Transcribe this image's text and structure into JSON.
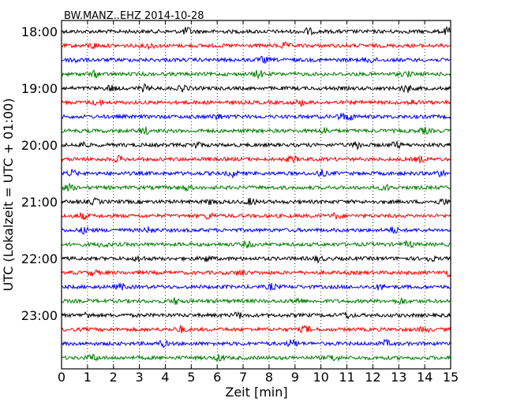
{
  "chart_data": {
    "type": "line",
    "chart_kind": "seismogram dayplot (helicorder)",
    "title": "BW.MANZ..EHZ 2014-10-28",
    "xlabel": "Zeit  [min]",
    "ylabel": "UTC (Lokalzeit = UTC + 01:00)",
    "xlim": [
      0,
      15
    ],
    "x_ticks": [
      "0",
      "1",
      "2",
      "3",
      "4",
      "5",
      "6",
      "7",
      "8",
      "9",
      "10",
      "11",
      "12",
      "13",
      "14",
      "15"
    ],
    "y_tick_labels": [
      "18:00",
      "19:00",
      "20:00",
      "21:00",
      "22:00",
      "23:00"
    ],
    "trace_interval_min": 15,
    "trace_count": 24,
    "trace_colors": [
      "#000000",
      "#ff0000",
      "#0000ff",
      "#007f00"
    ],
    "grid": "vertical dotted lines at each minute",
    "traces": [
      {
        "start": "18:00",
        "color": "#000000",
        "bursts": [
          {
            "x": 4.85,
            "amp": 1.8
          },
          {
            "x": 9.5,
            "amp": 1.4
          },
          {
            "x": 14.9,
            "amp": 1.6
          }
        ]
      },
      {
        "start": "18:15",
        "color": "#ff0000",
        "bursts": [
          {
            "x": 1.2,
            "amp": 1.3
          },
          {
            "x": 3.4,
            "amp": 1.2
          },
          {
            "x": 8.6,
            "amp": 1.2
          }
        ]
      },
      {
        "start": "18:30",
        "color": "#0000ff",
        "bursts": [
          {
            "x": 0.5,
            "amp": 1.3
          },
          {
            "x": 7.8,
            "amp": 1.3
          },
          {
            "x": 11.9,
            "amp": 1.2
          }
        ]
      },
      {
        "start": "18:45",
        "color": "#007f00",
        "bursts": [
          {
            "x": 1.3,
            "amp": 1.2
          },
          {
            "x": 7.6,
            "amp": 1.7
          },
          {
            "x": 13.3,
            "amp": 1.2
          }
        ]
      },
      {
        "start": "19:00",
        "color": "#000000",
        "bursts": [
          {
            "x": 1.9,
            "amp": 1.3
          },
          {
            "x": 3.2,
            "amp": 1.4
          },
          {
            "x": 4.7,
            "amp": 1.4
          },
          {
            "x": 13.3,
            "amp": 1.8
          }
        ]
      },
      {
        "start": "19:15",
        "color": "#ff0000",
        "bursts": [
          {
            "x": 1.4,
            "amp": 1.2
          },
          {
            "x": 9.2,
            "amp": 1.2
          },
          {
            "x": 13.6,
            "amp": 1.2
          }
        ]
      },
      {
        "start": "19:30",
        "color": "#0000ff",
        "bursts": [
          {
            "x": 6.0,
            "amp": 1.2
          },
          {
            "x": 10.8,
            "amp": 1.3
          },
          {
            "x": 11.1,
            "amp": 1.3
          }
        ]
      },
      {
        "start": "19:45",
        "color": "#007f00",
        "bursts": [
          {
            "x": 3.2,
            "amp": 1.6
          },
          {
            "x": 10.1,
            "amp": 1.4
          },
          {
            "x": 14.0,
            "amp": 1.3
          }
        ]
      },
      {
        "start": "20:00",
        "color": "#000000",
        "bursts": [
          {
            "x": 0.8,
            "amp": 1.3
          },
          {
            "x": 5.2,
            "amp": 1.3
          },
          {
            "x": 11.4,
            "amp": 1.6
          },
          {
            "x": 12.9,
            "amp": 1.3
          }
        ]
      },
      {
        "start": "20:15",
        "color": "#ff0000",
        "bursts": [
          {
            "x": 2.2,
            "amp": 1.2
          },
          {
            "x": 8.9,
            "amp": 1.3
          },
          {
            "x": 13.8,
            "amp": 1.2
          }
        ]
      },
      {
        "start": "20:30",
        "color": "#0000ff",
        "bursts": [
          {
            "x": 0.4,
            "amp": 1.4
          },
          {
            "x": 6.6,
            "amp": 1.4
          },
          {
            "x": 10.0,
            "amp": 1.5
          },
          {
            "x": 14.6,
            "amp": 1.3
          }
        ]
      },
      {
        "start": "20:45",
        "color": "#007f00",
        "bursts": [
          {
            "x": 0.3,
            "amp": 1.2
          },
          {
            "x": 4.8,
            "amp": 1.2
          },
          {
            "x": 12.5,
            "amp": 1.2
          }
        ]
      },
      {
        "start": "21:00",
        "color": "#000000",
        "bursts": [
          {
            "x": 1.3,
            "amp": 1.2
          },
          {
            "x": 5.8,
            "amp": 1.2
          },
          {
            "x": 7.3,
            "amp": 1.4
          },
          {
            "x": 14.7,
            "amp": 1.3
          }
        ]
      },
      {
        "start": "21:15",
        "color": "#ff0000",
        "bursts": [
          {
            "x": 0.8,
            "amp": 1.3
          },
          {
            "x": 5.7,
            "amp": 1.3
          },
          {
            "x": 10.6,
            "amp": 1.2
          }
        ]
      },
      {
        "start": "21:30",
        "color": "#0000ff",
        "bursts": [
          {
            "x": 0.9,
            "amp": 1.4
          },
          {
            "x": 3.4,
            "amp": 1.2
          },
          {
            "x": 12.8,
            "amp": 1.3
          }
        ]
      },
      {
        "start": "21:45",
        "color": "#007f00",
        "bursts": [
          {
            "x": 1.6,
            "amp": 1.2
          },
          {
            "x": 7.2,
            "amp": 1.3
          },
          {
            "x": 13.4,
            "amp": 1.2
          }
        ]
      },
      {
        "start": "22:00",
        "color": "#000000",
        "bursts": [
          {
            "x": 3.0,
            "amp": 1.3
          },
          {
            "x": 5.6,
            "amp": 1.3
          },
          {
            "x": 9.9,
            "amp": 1.3
          },
          {
            "x": 14.2,
            "amp": 1.2
          }
        ]
      },
      {
        "start": "22:15",
        "color": "#ff0000",
        "bursts": [
          {
            "x": 1.2,
            "amp": 1.2
          },
          {
            "x": 6.9,
            "amp": 1.3
          },
          {
            "x": 14.9,
            "amp": 1.4
          }
        ]
      },
      {
        "start": "22:30",
        "color": "#0000ff",
        "bursts": [
          {
            "x": 2.3,
            "amp": 1.2
          },
          {
            "x": 8.1,
            "amp": 1.3
          },
          {
            "x": 12.3,
            "amp": 1.2
          }
        ]
      },
      {
        "start": "22:45",
        "color": "#007f00",
        "bursts": [
          {
            "x": 4.4,
            "amp": 1.3
          },
          {
            "x": 9.1,
            "amp": 1.3
          },
          {
            "x": 13.1,
            "amp": 1.2
          }
        ]
      },
      {
        "start": "23:00",
        "color": "#000000",
        "bursts": [
          {
            "x": 1.0,
            "amp": 1.3
          },
          {
            "x": 6.8,
            "amp": 1.3
          },
          {
            "x": 11.0,
            "amp": 1.4
          }
        ]
      },
      {
        "start": "23:15",
        "color": "#ff0000",
        "bursts": [
          {
            "x": 4.6,
            "amp": 1.5
          },
          {
            "x": 9.4,
            "amp": 1.5
          },
          {
            "x": 14.0,
            "amp": 1.2
          }
        ]
      },
      {
        "start": "23:30",
        "color": "#0000ff",
        "bursts": [
          {
            "x": 3.9,
            "amp": 1.3
          },
          {
            "x": 8.9,
            "amp": 1.7
          },
          {
            "x": 12.5,
            "amp": 1.3
          }
        ]
      },
      {
        "start": "23:45",
        "color": "#007f00",
        "bursts": [
          {
            "x": 1.2,
            "amp": 1.4
          },
          {
            "x": 6.1,
            "amp": 1.3
          },
          {
            "x": 10.5,
            "amp": 1.3
          }
        ]
      }
    ]
  }
}
